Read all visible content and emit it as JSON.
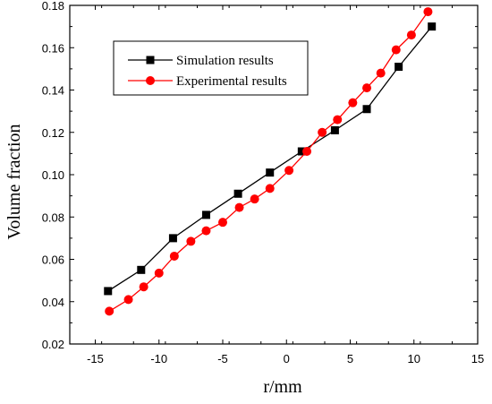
{
  "chart_data": {
    "type": "line",
    "xlabel": "r/mm",
    "ylabel": "Volume fraction",
    "xlim": [
      -17,
      15
    ],
    "ylim": [
      0.02,
      0.18
    ],
    "xticks": [
      -15,
      -10,
      -5,
      0,
      5,
      10,
      15
    ],
    "yticks": [
      0.02,
      0.04,
      0.06,
      0.08,
      0.1,
      0.12,
      0.14,
      0.16,
      0.18
    ],
    "xtick_labels": [
      "-15",
      "-10",
      "-5",
      "0",
      "5",
      "10",
      "15"
    ],
    "ytick_labels": [
      "0.02",
      "0.04",
      "0.06",
      "0.08",
      "0.10",
      "0.12",
      "0.14",
      "0.16",
      "0.18"
    ],
    "legend_position": "top-left",
    "grid": false,
    "series": [
      {
        "name": "Simulation results",
        "color": "#000000",
        "marker": "square",
        "x": [
          -14.0,
          -11.4,
          -8.9,
          -6.3,
          -3.8,
          -1.3,
          1.2,
          3.8,
          6.3,
          8.8,
          11.4
        ],
        "y": [
          0.045,
          0.055,
          0.07,
          0.081,
          0.091,
          0.101,
          0.111,
          0.121,
          0.131,
          0.151,
          0.17
        ]
      },
      {
        "name": "Experimental results",
        "color": "#ff0000",
        "marker": "circle",
        "x": [
          -13.9,
          -12.4,
          -11.2,
          -10.0,
          -8.8,
          -7.5,
          -6.3,
          -5.0,
          -3.7,
          -2.5,
          -1.3,
          0.2,
          1.6,
          2.8,
          4.0,
          5.2,
          6.3,
          7.4,
          8.6,
          9.8,
          11.1
        ],
        "y": [
          0.0355,
          0.041,
          0.047,
          0.0535,
          0.0615,
          0.0685,
          0.0735,
          0.0775,
          0.0845,
          0.0885,
          0.0935,
          0.102,
          0.111,
          0.12,
          0.126,
          0.134,
          0.141,
          0.148,
          0.159,
          0.166,
          0.177
        ]
      }
    ]
  }
}
